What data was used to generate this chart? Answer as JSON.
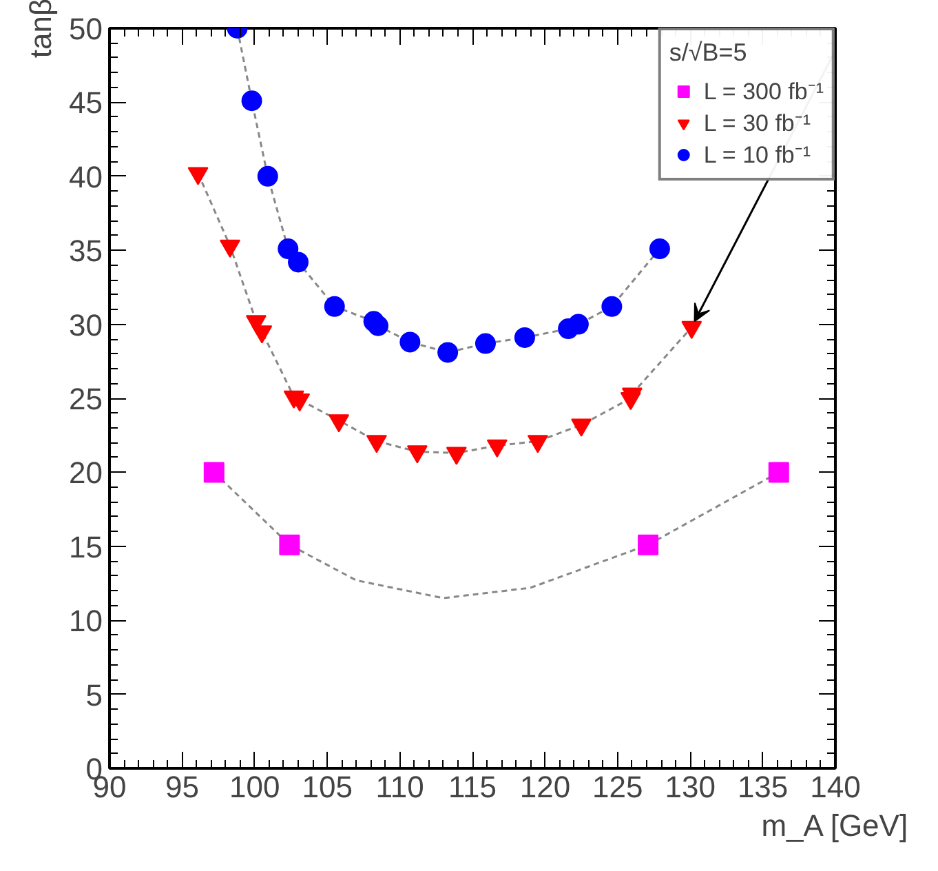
{
  "chart_data": {
    "type": "scatter",
    "xlabel": "m_A [GeV]",
    "ylabel": "tanβ",
    "legend_title": "s/√B=5",
    "legend": "top right",
    "grid": false,
    "xlim": [
      90,
      140
    ],
    "xticks": [
      90,
      95,
      100,
      105,
      110,
      115,
      120,
      125,
      130,
      135,
      140
    ],
    "ylim": [
      0,
      50
    ],
    "yticks": [
      0,
      5,
      10,
      15,
      20,
      25,
      30,
      35,
      40,
      45,
      50
    ],
    "series": [
      {
        "type": "line",
        "color": "#888888",
        "line_style": "dashed",
        "marker": "none",
        "x": [
          97.2,
          102.4,
          107,
          113,
          119,
          127.1,
          136.1
        ],
        "values": [
          20,
          15.1,
          12.7,
          11.5,
          12.2,
          15.1,
          20
        ]
      },
      {
        "type": "line",
        "color": "#888888",
        "line_style": "dashed",
        "marker": "none",
        "x": [
          96.1,
          98.3,
          100.1,
          100.5,
          102.7,
          103.1,
          105.8,
          108.4,
          111.2,
          113.9,
          116.7,
          119.5,
          122.5,
          125.9,
          126.0,
          130.1
        ],
        "values": [
          40.2,
          35.3,
          30.2,
          29.5,
          25.1,
          24.9,
          23.5,
          22.1,
          21.4,
          21.3,
          21.8,
          22.1,
          23.2,
          25.0,
          25.3,
          29.8
        ]
      },
      {
        "type": "line",
        "color": "#888888",
        "line_style": "dashed",
        "marker": "none",
        "x": [
          98.8,
          99.8,
          100.9,
          102.3,
          103.0,
          105.5,
          108.2,
          108.5,
          110.7,
          113.3,
          115.9,
          118.6,
          121.6,
          122.3,
          124.6,
          127.9
        ],
        "values": [
          50,
          45.1,
          40.0,
          35.1,
          34.2,
          31.2,
          30.2,
          29.9,
          28.8,
          28.1,
          28.7,
          29.1,
          29.7,
          30.0,
          31.2,
          35.1
        ]
      },
      {
        "name": "L = 300 fb⁻¹",
        "marker": "square",
        "color": "#ff00ff",
        "x": [
          97.2,
          102.4,
          127.1,
          136.1
        ],
        "values": [
          20,
          15.1,
          15.1,
          20
        ]
      },
      {
        "name": "L = 30 fb⁻¹",
        "marker": "triangle",
        "color": "#ff0000",
        "x": [
          96.1,
          98.3,
          100.1,
          100.5,
          102.7,
          103.1,
          105.8,
          108.4,
          111.2,
          113.9,
          116.7,
          119.5,
          122.5,
          125.9,
          126.0,
          130.1
        ],
        "values": [
          40.2,
          35.3,
          30.2,
          29.5,
          25.1,
          24.9,
          23.5,
          22.1,
          21.4,
          21.3,
          21.8,
          22.1,
          23.2,
          25.0,
          25.3,
          29.8
        ]
      },
      {
        "name": "L = 10 fb⁻¹",
        "marker": "circle",
        "color": "#0000ff",
        "x": [
          98.8,
          99.8,
          100.9,
          102.3,
          103.0,
          105.5,
          108.2,
          108.5,
          110.7,
          113.3,
          115.9,
          118.6,
          121.6,
          122.3,
          124.6,
          127.9
        ],
        "values": [
          50,
          45.1,
          40.0,
          35.1,
          34.2,
          31.2,
          30.2,
          29.9,
          28.8,
          28.1,
          28.7,
          29.1,
          29.7,
          30.0,
          31.2,
          35.1
        ]
      }
    ]
  }
}
